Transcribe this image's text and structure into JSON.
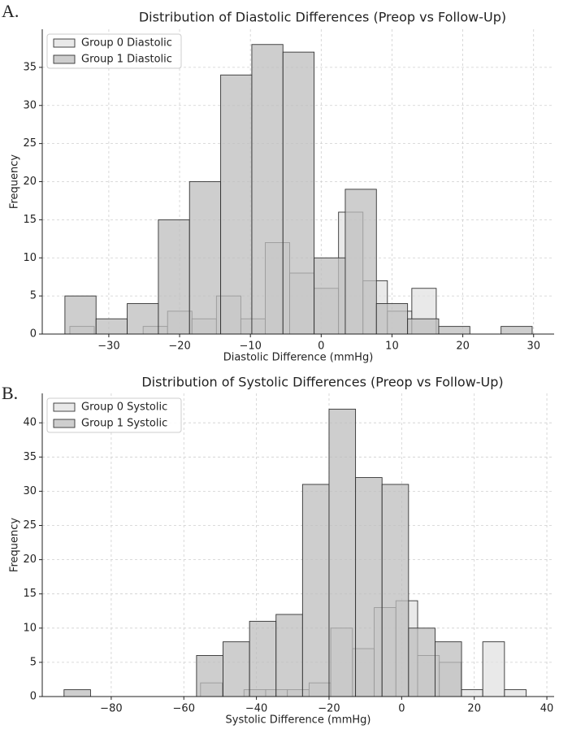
{
  "chart_data": [
    {
      "type": "histogram",
      "panel_label": "A.",
      "title": "Distribution of Diastolic Differences (Preop vs Follow-Up)",
      "x_label": "Diastolic Difference (mmHg)",
      "y_label": "Frequency",
      "xlim": [
        -39.4,
        32.9
      ],
      "ylim": [
        0,
        40
      ],
      "xticks": [
        {
          "value": -30,
          "label": "−30"
        },
        {
          "value": -20,
          "label": "−20"
        },
        {
          "value": -10,
          "label": "−10"
        },
        0,
        10,
        20,
        30
      ],
      "yticks": [
        0,
        5,
        10,
        15,
        20,
        25,
        30,
        35
      ],
      "grid": true,
      "legend": "upper left",
      "series": [
        {
          "name": "Group 0 Diastolic",
          "color": "#e2e2e2",
          "bins": [
            -35.5,
            -32.05,
            -28.6,
            -25.15,
            -21.7,
            -18.25,
            -14.8,
            -11.35,
            -7.9,
            -4.45,
            -1.0,
            2.45,
            5.9,
            9.35,
            12.8,
            16.25
          ],
          "values": [
            1,
            0,
            0,
            1,
            3,
            2,
            5,
            2,
            12,
            8,
            6,
            16,
            7,
            3,
            6
          ]
        },
        {
          "name": "Group 1 Diastolic",
          "color": "#bdbdbd",
          "bins": [
            -36.2,
            -31.8,
            -27.4,
            -23.0,
            -18.6,
            -14.2,
            -9.8,
            -5.4,
            -1.0,
            3.4,
            7.8,
            12.2,
            16.6,
            21.0,
            25.4,
            29.8
          ],
          "values": [
            5,
            2,
            4,
            15,
            20,
            34,
            38,
            37,
            10,
            19,
            4,
            2,
            1,
            0,
            1
          ]
        }
      ]
    },
    {
      "type": "histogram",
      "panel_label": "B.",
      "title": "Distribution of Systolic Differences (Preop vs Follow-Up)",
      "x_label": "Systolic Difference (mmHg)",
      "y_label": "Frequency",
      "xlim": [
        -99.0,
        42.0
      ],
      "ylim": [
        0,
        44.3
      ],
      "xticks": [
        {
          "value": -80,
          "label": "−80"
        },
        {
          "value": -60,
          "label": "−60"
        },
        {
          "value": -40,
          "label": "−40"
        },
        {
          "value": -20,
          "label": "−20"
        },
        0,
        20,
        40
      ],
      "yticks": [
        0,
        5,
        10,
        15,
        20,
        25,
        30,
        35,
        40
      ],
      "grid": true,
      "legend": "upper left",
      "series": [
        {
          "name": "Group 0 Systolic",
          "color": "#e2e2e2",
          "bins": [
            -55.4,
            -49.42,
            -43.44,
            -37.46,
            -31.48,
            -25.5,
            -19.52,
            -13.54,
            -7.56,
            -1.58,
            4.4,
            10.38,
            16.36,
            22.34,
            28.32,
            34.3
          ],
          "values": [
            2,
            0,
            1,
            1,
            1,
            2,
            10,
            7,
            13,
            14,
            6,
            5,
            1,
            8,
            1
          ]
        },
        {
          "name": "Group 1 Systolic",
          "color": "#bdbdbd",
          "bins": [
            -93.0,
            -85.7,
            -78.4,
            -71.1,
            -63.8,
            -56.5,
            -49.2,
            -41.9,
            -34.6,
            -27.3,
            -20.0,
            -12.7,
            -5.4,
            1.9,
            9.2,
            16.5
          ],
          "values": [
            1,
            0,
            0,
            0,
            0,
            6,
            8,
            11,
            12,
            31,
            42,
            32,
            31,
            10,
            8
          ]
        }
      ]
    }
  ]
}
